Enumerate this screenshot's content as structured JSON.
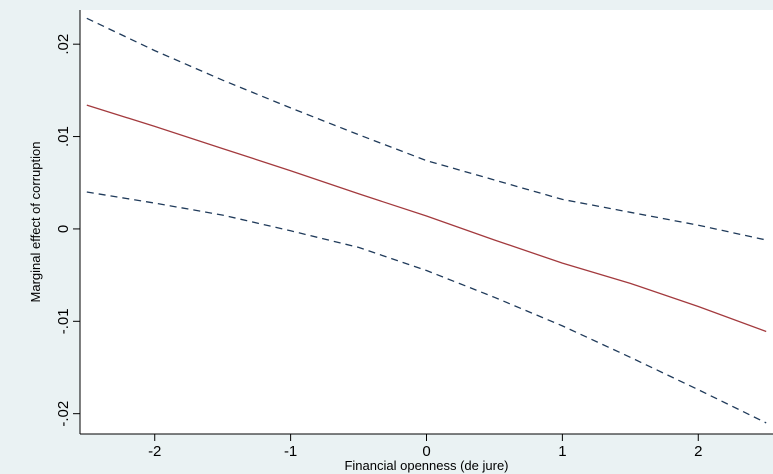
{
  "chart_data": {
    "type": "line",
    "title": "",
    "xlabel": "Financial openness (de jure)",
    "ylabel": "Marginal effect of corruption",
    "xlim": [
      -2.55,
      2.55
    ],
    "ylim": [
      -0.0222,
      0.0237
    ],
    "x_ticks": [
      -2,
      -1,
      0,
      1,
      2
    ],
    "x_tick_labels": [
      "-2",
      "-1",
      "0",
      "1",
      "2"
    ],
    "y_ticks": [
      -0.02,
      -0.01,
      0,
      0.01,
      0.02
    ],
    "y_tick_labels": [
      "-.02",
      "-.01",
      "0",
      ".01",
      ".02"
    ],
    "grid": false,
    "legend": "none",
    "series": [
      {
        "role": "estimate",
        "color": "#a33a3e",
        "dash": "solid",
        "x": [
          -2.5,
          -2.0,
          -1.5,
          -1.0,
          -0.5,
          0.0,
          0.5,
          1.0,
          1.5,
          2.0,
          2.5
        ],
        "y": [
          0.0134,
          0.0111,
          0.0087,
          0.0063,
          0.0038,
          0.0014,
          -0.0012,
          -0.0037,
          -0.0059,
          -0.0084,
          -0.0111
        ]
      },
      {
        "role": "upper-bound",
        "color": "#1f3a5a",
        "dash": "dashed",
        "x": [
          -2.5,
          -2.0,
          -1.5,
          -1.0,
          -0.5,
          0.0,
          0.5,
          1.0,
          1.5,
          2.0,
          2.5
        ],
        "y": [
          0.0228,
          0.0193,
          0.0161,
          0.0131,
          0.0102,
          0.0074,
          0.0053,
          0.0032,
          0.0018,
          0.0004,
          -0.0012
        ]
      },
      {
        "role": "lower-bound",
        "color": "#1f3a5a",
        "dash": "dashed",
        "x": [
          -2.5,
          -2.0,
          -1.5,
          -1.0,
          -0.5,
          0.0,
          0.5,
          1.0,
          1.5,
          2.0,
          2.5
        ],
        "y": [
          0.004,
          0.0028,
          0.0015,
          -0.0002,
          -0.002,
          -0.0045,
          -0.0074,
          -0.0105,
          -0.0139,
          -0.0174,
          -0.021
        ]
      }
    ]
  }
}
